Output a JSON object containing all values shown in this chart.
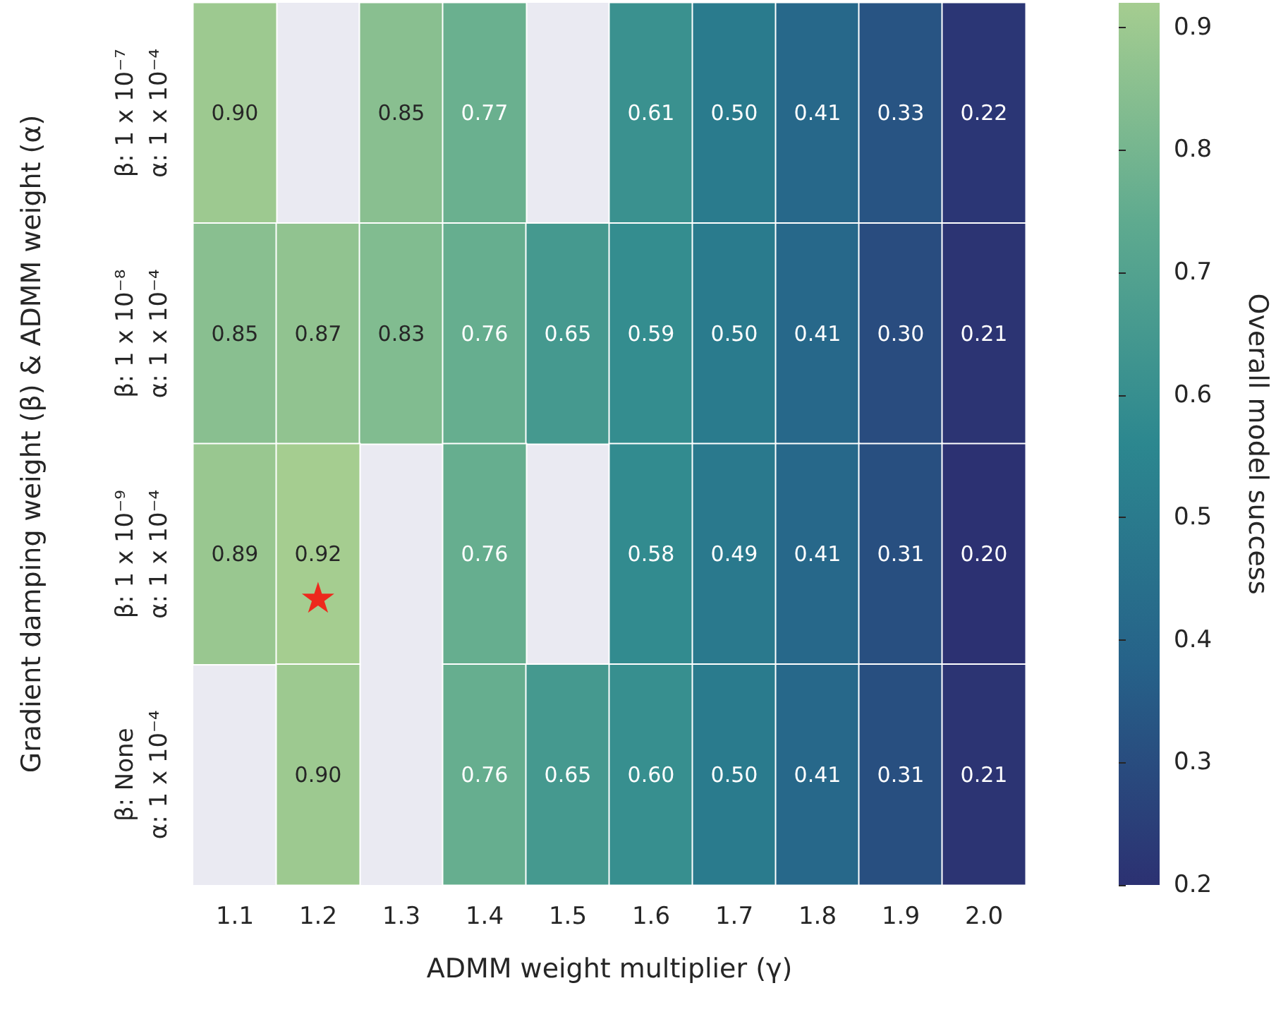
{
  "chart_data": {
    "type": "heatmap",
    "xlabel": "ADMM weight multiplier (γ)",
    "ylabel": "Gradient damping weight (β) & ADMM weight (α)",
    "clabel": "Overall model success",
    "categories": [
      "1.1",
      "1.2",
      "1.3",
      "1.4",
      "1.5",
      "1.6",
      "1.7",
      "1.8",
      "1.9",
      "2.0"
    ],
    "y_categories": [
      "β: 1 x 10⁻⁷\nα: 1 x 10⁻⁴",
      "β: 1 x 10⁻⁸\nα: 1 x 10⁻⁴",
      "β: 1 x 10⁻⁹\nα: 1 x 10⁻⁴",
      "β: None\nα: 1 x 10⁻⁴"
    ],
    "cells": [
      [
        0.9,
        null,
        0.85,
        0.77,
        null,
        0.61,
        0.5,
        0.41,
        0.33,
        0.22
      ],
      [
        0.85,
        0.87,
        0.83,
        0.76,
        0.65,
        0.59,
        0.5,
        0.41,
        0.3,
        0.21
      ],
      [
        0.89,
        0.92,
        null,
        0.76,
        null,
        0.58,
        0.49,
        0.41,
        0.31,
        0.2
      ],
      [
        null,
        0.9,
        null,
        0.76,
        0.65,
        0.6,
        0.5,
        0.41,
        0.31,
        0.21
      ]
    ],
    "cell_labels": [
      [
        "0.90",
        null,
        "0.85",
        "0.77",
        null,
        "0.61",
        "0.50",
        "0.41",
        "0.33",
        "0.22"
      ],
      [
        "0.85",
        "0.87",
        "0.83",
        "0.76",
        "0.65",
        "0.59",
        "0.50",
        "0.41",
        "0.30",
        "0.21"
      ],
      [
        "0.89",
        "0.92",
        null,
        "0.76",
        null,
        "0.58",
        "0.49",
        "0.41",
        "0.31",
        "0.20"
      ],
      [
        null,
        "0.90",
        null,
        "0.76",
        "0.65",
        "0.60",
        "0.50",
        "0.41",
        "0.31",
        "0.21"
      ]
    ],
    "clim": [
      0.2,
      0.92
    ],
    "cticks": [
      0.2,
      0.3,
      0.4,
      0.5,
      0.6,
      0.7,
      0.8,
      0.9
    ],
    "annotations": [
      "★"
    ]
  }
}
